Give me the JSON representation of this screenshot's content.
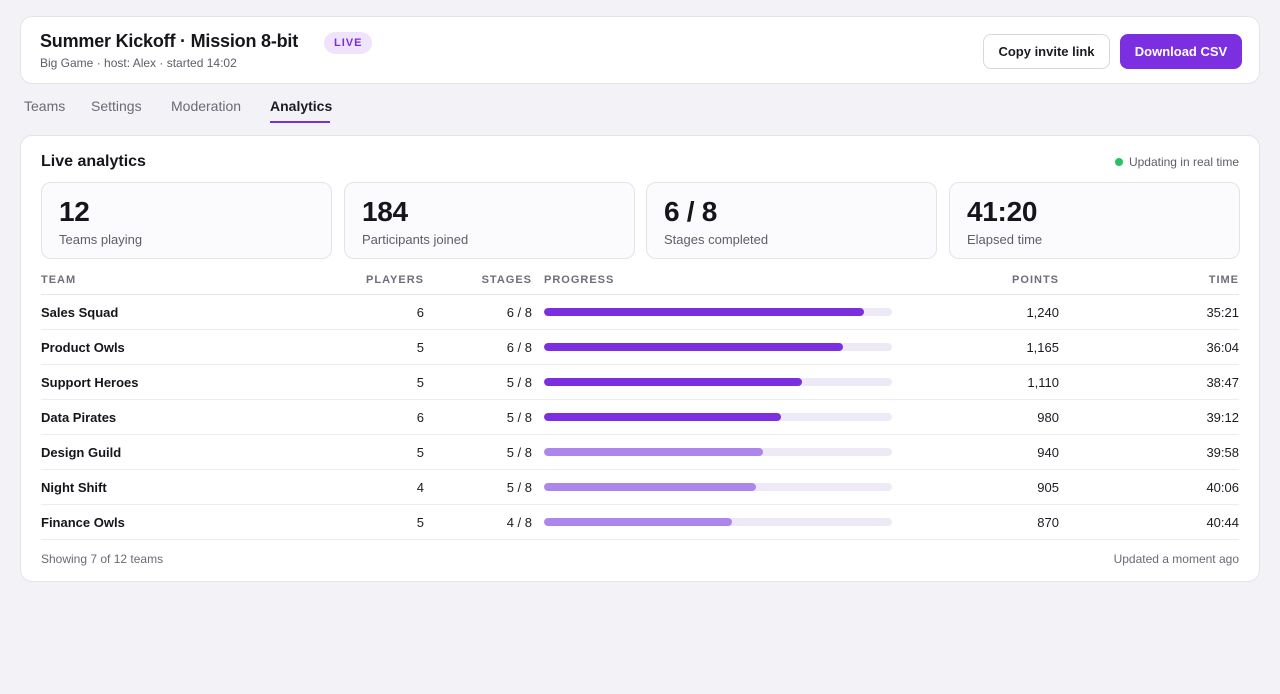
{
  "header": {
    "title": "Summer Kickoff · Mission 8-bit",
    "badge": "LIVE",
    "subtitle": "Big Game · host: Alex · started 14:02",
    "copy_invite_label": "Copy invite link",
    "download_csv_label": "Download CSV"
  },
  "tabs": [
    {
      "label": "Teams",
      "active": false
    },
    {
      "label": "Settings",
      "active": false
    },
    {
      "label": "Moderation",
      "active": false
    },
    {
      "label": "Analytics",
      "active": true
    }
  ],
  "analytics": {
    "title": "Live analytics",
    "status": "Updating in real time",
    "status_color": "#22c55e",
    "stats": [
      {
        "value": "12",
        "label": "Teams playing"
      },
      {
        "value": "184",
        "label": "Participants joined"
      },
      {
        "value": "6 / 8",
        "label": "Stages completed"
      },
      {
        "value": "41:20",
        "label": "Elapsed time"
      }
    ],
    "columns": {
      "team": "TEAM",
      "players": "PLAYERS",
      "stages": "STAGES",
      "progress": "PROGRESS",
      "points": "POINTS",
      "time": "TIME"
    },
    "rows": [
      {
        "team": "Sales Squad",
        "players": "6",
        "stages": "6 / 8",
        "progress": 0.92,
        "tone": "strong",
        "points": "1,240",
        "time": "35:21"
      },
      {
        "team": "Product Owls",
        "players": "5",
        "stages": "6 / 8",
        "progress": 0.86,
        "tone": "strong",
        "points": "1,165",
        "time": "36:04"
      },
      {
        "team": "Support Heroes",
        "players": "5",
        "stages": "5 / 8",
        "progress": 0.74,
        "tone": "strong",
        "points": "1,110",
        "time": "38:47"
      },
      {
        "team": "Data Pirates",
        "players": "6",
        "stages": "5 / 8",
        "progress": 0.68,
        "tone": "strong",
        "points": "980",
        "time": "39:12"
      },
      {
        "team": "Design Guild",
        "players": "5",
        "stages": "5 / 8",
        "progress": 0.63,
        "tone": "light",
        "points": "940",
        "time": "39:58"
      },
      {
        "team": "Night Shift",
        "players": "4",
        "stages": "5 / 8",
        "progress": 0.61,
        "tone": "light",
        "points": "905",
        "time": "40:06"
      },
      {
        "team": "Finance Owls",
        "players": "5",
        "stages": "4 / 8",
        "progress": 0.54,
        "tone": "light",
        "points": "870",
        "time": "40:44"
      }
    ],
    "footer_left": "Showing 7 of 12 teams",
    "footer_right": "Updated a moment ago"
  },
  "colors": {
    "accent": "#7b2fe0",
    "progress_strong": "#7b2fe0",
    "progress_light": "#ad86ec",
    "progress_track": "#ede9f6"
  }
}
